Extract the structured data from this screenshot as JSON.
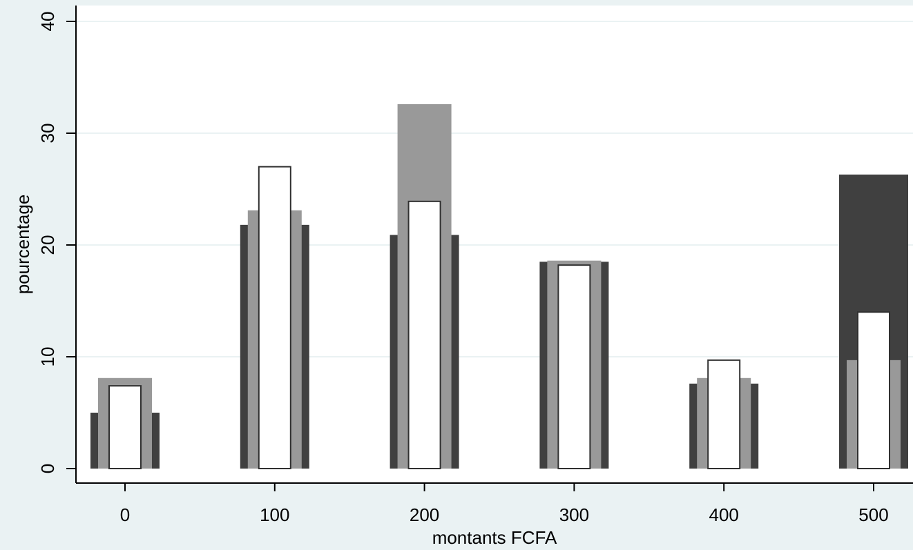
{
  "chart_data": {
    "type": "bar",
    "title": "",
    "xlabel": "montants FCFA",
    "ylabel": "pourcentage",
    "xlim": [
      -30,
      530
    ],
    "ylim": [
      0,
      41
    ],
    "x_ticks": [
      0,
      100,
      200,
      300,
      400,
      500
    ],
    "y_ticks": [
      0,
      10,
      20,
      30,
      40
    ],
    "grid": "horizontal",
    "legend": "none",
    "categories": [
      0,
      100,
      200,
      300,
      400,
      500
    ],
    "series": [
      {
        "color": "#404040",
        "values": [
          5.0,
          21.8,
          20.9,
          18.5,
          7.6,
          26.3
        ]
      },
      {
        "color": "#999999",
        "values": [
          8.1,
          23.1,
          32.6,
          18.6,
          8.1,
          9.7
        ]
      },
      {
        "color": "#ffffff",
        "values": [
          7.4,
          27.0,
          23.9,
          18.2,
          9.7,
          14.0
        ]
      }
    ],
    "colors": {
      "background": "#eaf2f3",
      "plot_area": "#ffffff",
      "grid": "#eaf2f3"
    }
  }
}
